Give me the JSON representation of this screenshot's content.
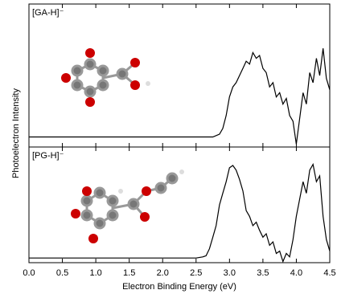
{
  "chart_data": [
    {
      "type": "line",
      "title": "[GA-H]⁻",
      "color": "#000000",
      "x": [
        0,
        0.5,
        1.0,
        1.5,
        2.0,
        2.5,
        2.7,
        2.75,
        2.8,
        2.85,
        2.9,
        2.95,
        3.0,
        3.05,
        3.1,
        3.15,
        3.2,
        3.25,
        3.3,
        3.35,
        3.4,
        3.45,
        3.5,
        3.55,
        3.6,
        3.65,
        3.7,
        3.75,
        3.8,
        3.85,
        3.9,
        3.95,
        4.0,
        4.05,
        4.1,
        4.15,
        4.2,
        4.25,
        4.3,
        4.35,
        4.4,
        4.45,
        4.5
      ],
      "values": [
        7,
        7,
        7,
        7,
        7,
        7,
        7,
        7,
        8,
        9,
        13,
        22,
        35,
        42,
        45,
        50,
        55,
        60,
        58,
        66,
        62,
        64,
        55,
        52,
        42,
        45,
        35,
        38,
        30,
        34,
        22,
        18,
        2,
        20,
        38,
        30,
        52,
        45,
        62,
        50,
        69,
        48,
        40
      ],
      "ylim": [
        0,
        100
      ]
    },
    {
      "type": "line",
      "title": "[PG-H]⁻",
      "color": "#000000",
      "x": [
        0,
        0.5,
        1.0,
        1.5,
        2.0,
        2.5,
        2.6,
        2.65,
        2.7,
        2.75,
        2.8,
        2.85,
        2.9,
        2.95,
        3.0,
        3.05,
        3.1,
        3.15,
        3.2,
        3.25,
        3.3,
        3.35,
        3.4,
        3.45,
        3.5,
        3.55,
        3.6,
        3.65,
        3.7,
        3.75,
        3.8,
        3.85,
        3.9,
        3.95,
        4.0,
        4.05,
        4.1,
        4.15,
        4.2,
        4.25,
        4.3,
        4.35,
        4.4,
        4.45,
        4.5
      ],
      "values": [
        4,
        4,
        4,
        4,
        4,
        4,
        5,
        6,
        12,
        22,
        32,
        50,
        60,
        70,
        82,
        84,
        80,
        72,
        62,
        45,
        40,
        32,
        35,
        28,
        22,
        25,
        15,
        18,
        8,
        10,
        1,
        8,
        5,
        20,
        40,
        55,
        70,
        60,
        80,
        85,
        70,
        75,
        40,
        20,
        10
      ],
      "ylim": [
        0,
        100
      ],
      "xlim": [
        0,
        4.5
      ],
      "xticks": [
        {
          "value": 0,
          "label": "0.0"
        },
        0.5,
        {
          "value": 1,
          "label": "1.0"
        },
        1.5,
        {
          "value": 2,
          "label": "2.0"
        },
        2.5,
        {
          "value": 3,
          "label": "3.0"
        },
        3.5,
        {
          "value": 4,
          "label": "4.0"
        },
        4.5
      ],
      "xlabel": "Electron Binding Energy (eV)",
      "ylabel": "Photoelectron Intensity"
    }
  ]
}
